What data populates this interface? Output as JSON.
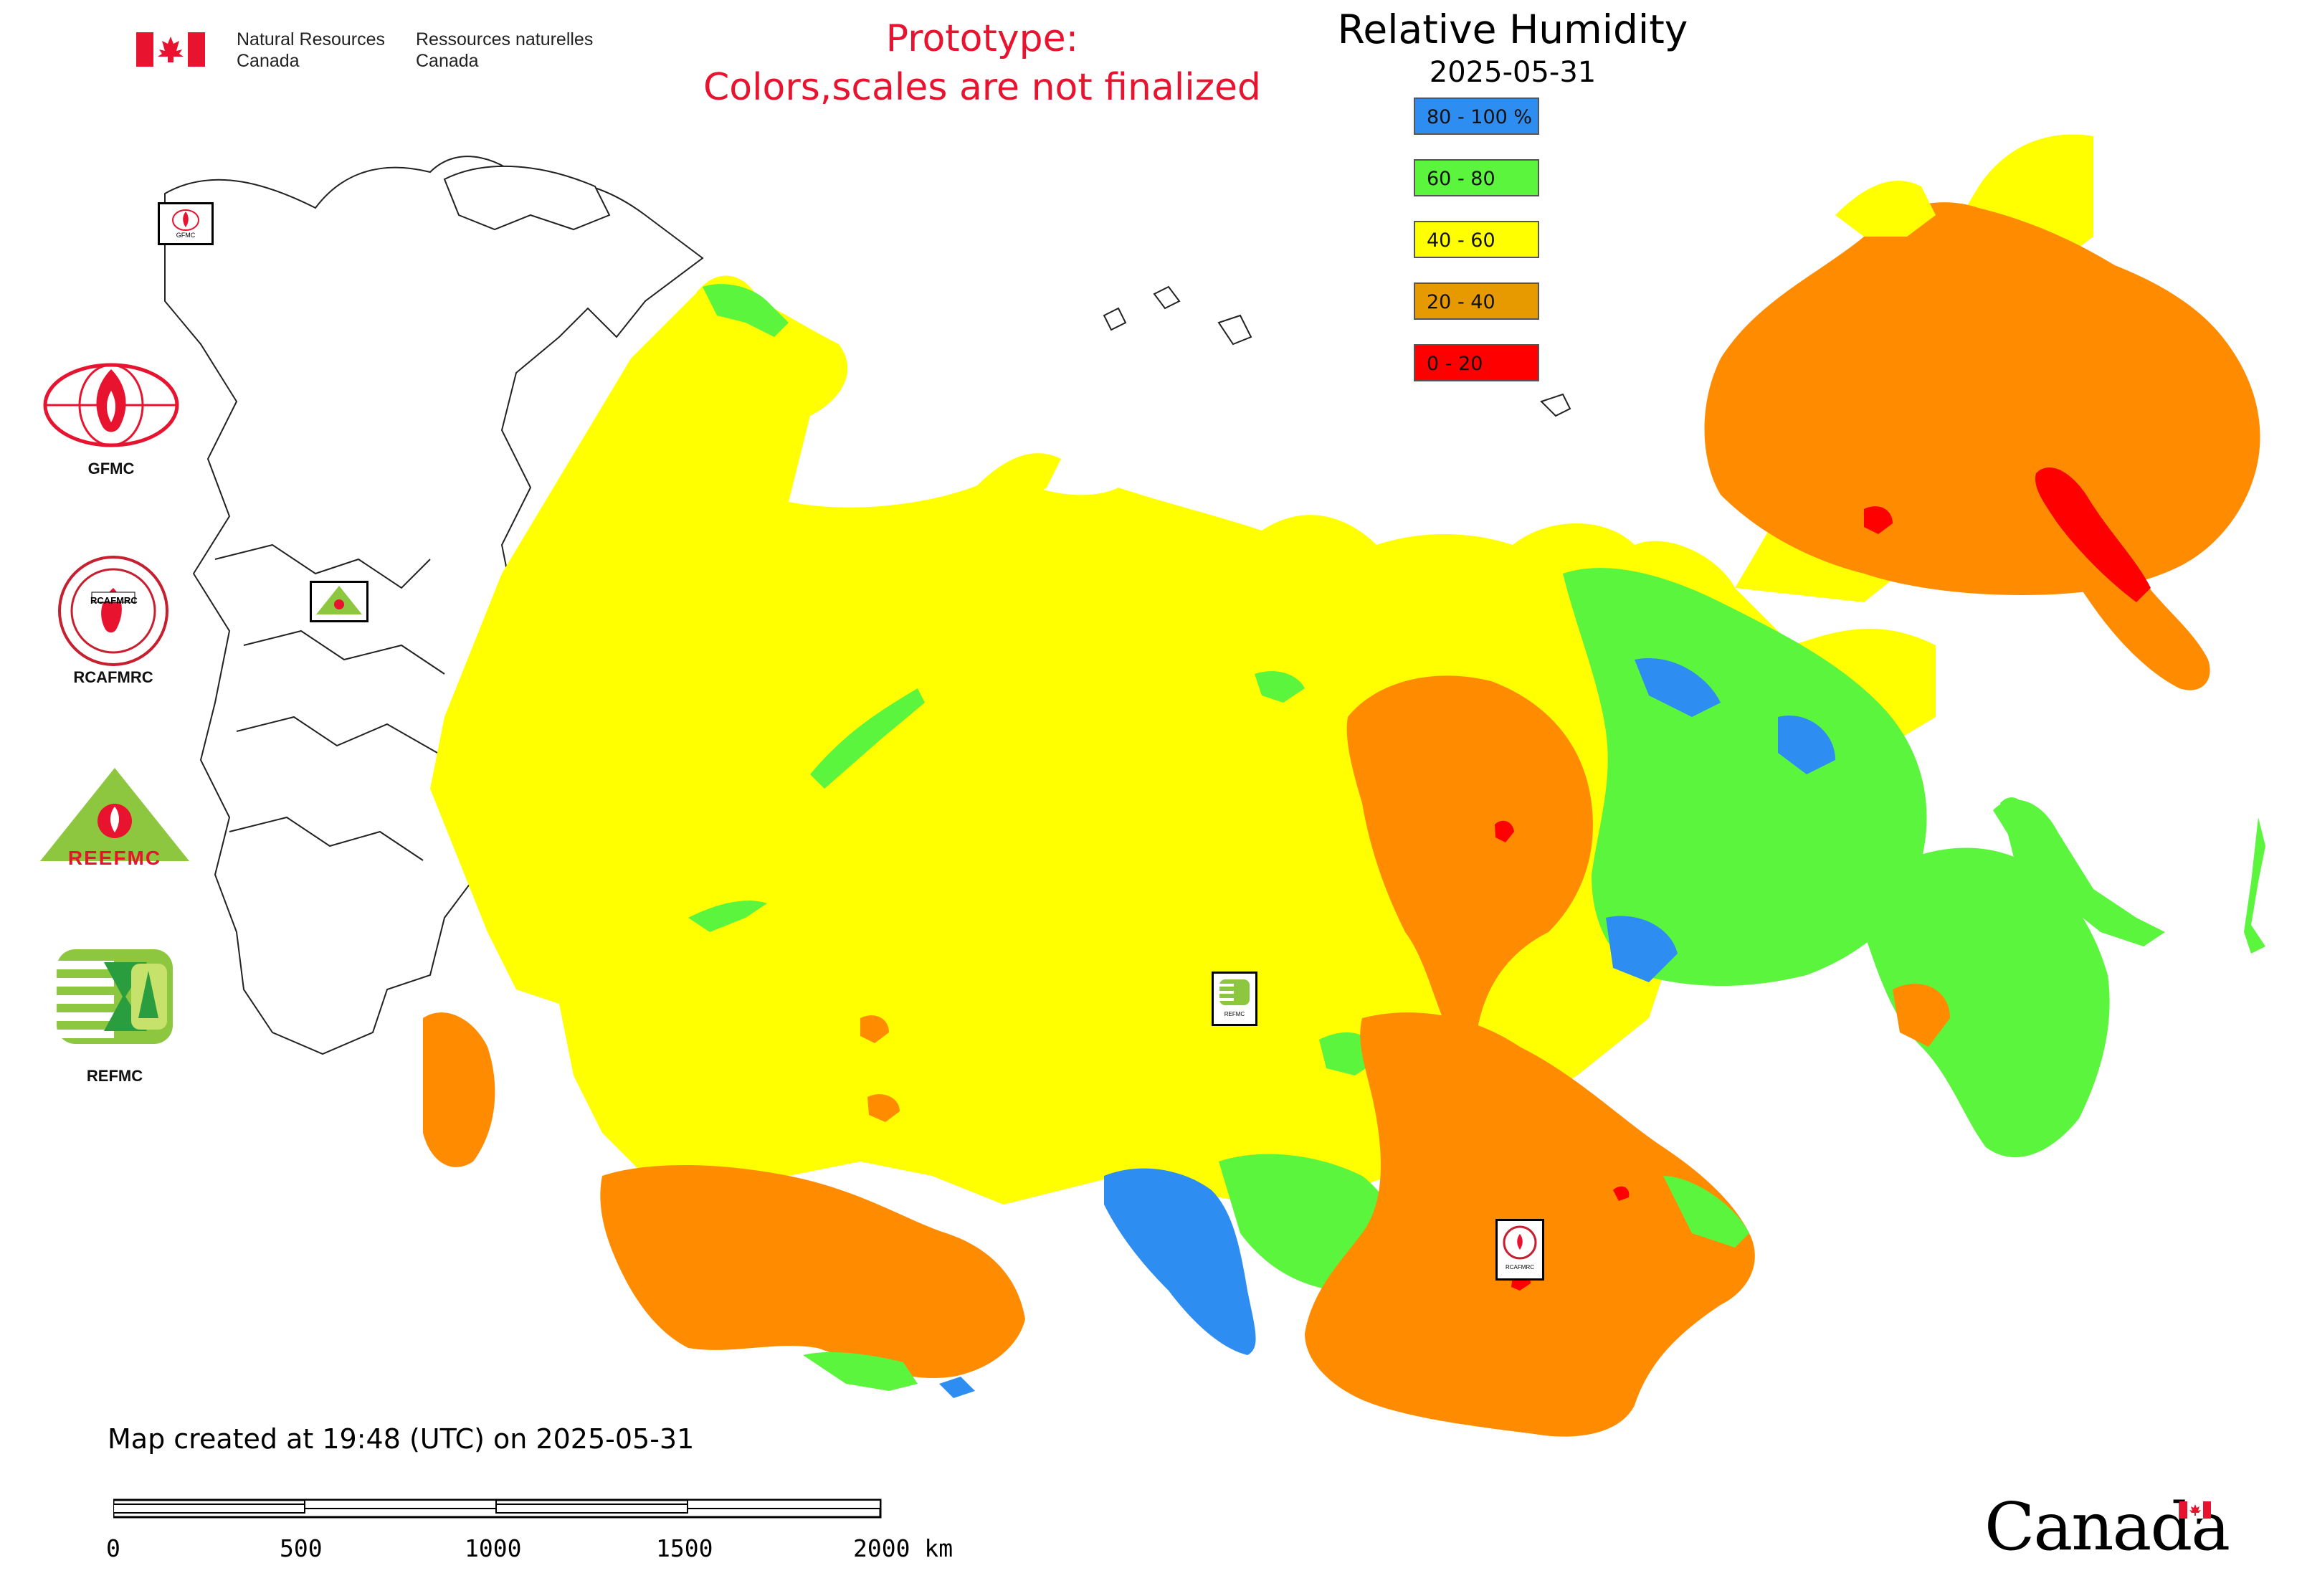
{
  "header": {
    "org_en_line1": "Natural Resources",
    "org_en_line2": "Canada",
    "org_fr_line1": "Ressources naturelles",
    "org_fr_line2": "Canada"
  },
  "notice": {
    "line1": "Prototype:",
    "line2": "Colors,scales are not finalized"
  },
  "map": {
    "title": "Relative Humidity",
    "date": "2025-05-31",
    "legend": [
      {
        "label": "80 - 100 %",
        "color": "#2e8df0"
      },
      {
        "label": "60 - 80",
        "color": "#5af53c"
      },
      {
        "label": "40 - 60",
        "color": "#ffff00"
      },
      {
        "label": "20 - 40",
        "color": "#e69a00"
      },
      {
        "label": "0 - 20",
        "color": "#ff0000"
      }
    ]
  },
  "logos": [
    {
      "label": "GFMC"
    },
    {
      "label": "RCAFMRC"
    },
    {
      "label": "REEFMC"
    },
    {
      "label": "REFMC"
    }
  ],
  "logo_marks": {
    "reefmc_text": "REEFMC",
    "rcafmrc_badge": "RCAFMRC",
    "gfmc_badge": "GFMC",
    "refmc_badge": "REFMC"
  },
  "footer": {
    "created": "Map created at 19:48 (UTC) on 2025-05-31",
    "scale_labels": [
      "0",
      "500",
      "1000",
      "1500",
      "2000 km"
    ],
    "wordmark": "Canada"
  },
  "colors": {
    "blue": "#2e8df0",
    "green": "#5af53c",
    "yellow": "#ffff00",
    "orange": "#ff8c00",
    "red": "#ff0000",
    "accent_red": "#e8132f"
  }
}
